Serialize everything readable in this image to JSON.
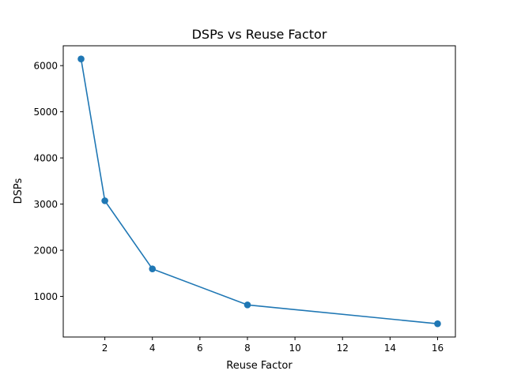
{
  "chart_data": {
    "type": "line",
    "title": "DSPs vs Reuse Factor",
    "xlabel": "Reuse Factor",
    "ylabel": "DSPs",
    "x": [
      1,
      2,
      4,
      8,
      16
    ],
    "series": [
      {
        "values": [
          6144,
          3072,
          1596,
          816,
          408
        ],
        "color": "#1f77b4",
        "marker": "circle"
      }
    ],
    "xlim": [
      0.25,
      16.75
    ],
    "ylim": [
      120,
      6430
    ],
    "xticks": [
      2,
      4,
      6,
      8,
      10,
      12,
      14,
      16
    ],
    "yticks": [
      1000,
      2000,
      3000,
      4000,
      5000,
      6000
    ],
    "grid": false,
    "legend": "none"
  }
}
